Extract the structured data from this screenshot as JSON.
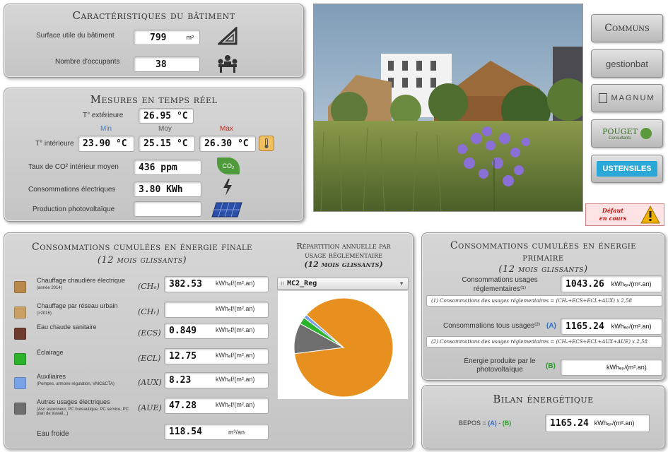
{
  "building": {
    "title": "Caractéristiques du bâtiment",
    "surface_label": "Surface utile du bâtiment",
    "surface_value": "799",
    "surface_unit": "m²",
    "occupants_label": "Nombre d'occupants",
    "occupants_value": "38"
  },
  "realtime": {
    "title": "Mesures en temps réel",
    "ext_label": "T° extérieure",
    "ext_value": "26.95 °C",
    "col_min": "Min",
    "col_moy": "Moy",
    "col_max": "Max",
    "int_label": "T° intérieure",
    "int_min": "23.90 °C",
    "int_moy": "25.15 °C",
    "int_max": "26.30 °C",
    "co2_label": "Taux de CO² intérieur moyen",
    "co2_value": "436 ppm",
    "co2_icon_text": "CO₂",
    "elec_label": "Consommations électriques",
    "elec_value": "3.80 KWh",
    "pv_label": "Production photovoltaïque",
    "pv_value": ""
  },
  "sidebar": {
    "communs": "Communs",
    "gestionbat": "gestionbat",
    "magnum": "MAGNUM",
    "pouget": "POUGET",
    "pouget_sub": "Consultants",
    "ustensiles": "USTENSILES",
    "alert_line1": "Défaut",
    "alert_line2": "en cours"
  },
  "final_energy": {
    "title": "Consommations cumulées en énergie finale",
    "subtitle": "(12 mois glissants)",
    "unit": "kWhₑf/(m².an)",
    "rows": [
      {
        "label": "Chauffage chaudière électrique",
        "label2": "(année 2014)",
        "sym": "(CHₑ)",
        "value": "382.53",
        "color": "#b8894a"
      },
      {
        "label": "Chauffage par réseau urbain",
        "label2": "(>2015)",
        "sym": "(CHᵣ)",
        "value": "",
        "color": "#c9a063"
      },
      {
        "label": "Eau chaude sanitaire",
        "label2": "",
        "sym": "(ECS)",
        "value": "0.849",
        "color": "#6e3b2e"
      },
      {
        "label": "Éclairage",
        "label2": "",
        "sym": "(ECL)",
        "value": "12.75",
        "color": "#2cb32c"
      },
      {
        "label": "Auxiliaires",
        "label2": "(Pompes, armoire régulation, VMC&CTA)",
        "sym": "(AUX)",
        "value": "8.23",
        "color": "#7aa2e6"
      },
      {
        "label": "Autres usages électriques",
        "label2": "(Asc ascenseur, PC bureautique, PC service, PC plan de travail...)",
        "sym": "(AUE)",
        "value": "47.28",
        "color": "#6e6e6e"
      }
    ],
    "water_label": "Eau froide",
    "water_value": "118.54",
    "water_unit": "m³/an"
  },
  "repartition": {
    "title_line1": "Répartition annuelle par",
    "title_line2": "usage réglementaire",
    "title_line3": "(12 mois glissants)",
    "select_value": "MC2_Reg"
  },
  "primary_energy": {
    "title_line1": "Consommations cumulées en énergie",
    "title_line2": "primaire",
    "title_line3": "(12 mois glissants)",
    "reg_label": "Consommations usages réglementaires⁽¹⁾",
    "reg_value": "1043.26",
    "unit": "kWhₑₚ/(m².an)",
    "note1": "(1) Consommations des usages réglementaires = (CHₑ+ECS+ECL+AUX) x 2,58",
    "all_label": "Consommations tous usages⁽²⁾",
    "all_tag": "(A)",
    "all_value": "1165.24",
    "note2": "(2) Consommations des usages réglementaires = (CHₑ+ECS+ECL+AUX+AUE) x 2,58",
    "pv_label": "Énergie produite par le photovoltaïque",
    "pv_tag": "(B)",
    "pv_value": ""
  },
  "bilan": {
    "title": "Bilan énergétique",
    "bepos_label": "BEPOS = ",
    "a": "(A)",
    "minus": " - ",
    "b": "(B)",
    "value": "1165.24",
    "unit": "kWhₑₚ/(m².an)"
  },
  "chart_data": {
    "type": "pie",
    "title": "",
    "labels": [
      "",
      "",
      "",
      ""
    ],
    "values": [
      86.5,
      10.0,
      2.3,
      1.2
    ],
    "colors": [
      "#e8901f",
      "#6e6e6e",
      "#2cb32c",
      "#7aa2e6"
    ]
  }
}
